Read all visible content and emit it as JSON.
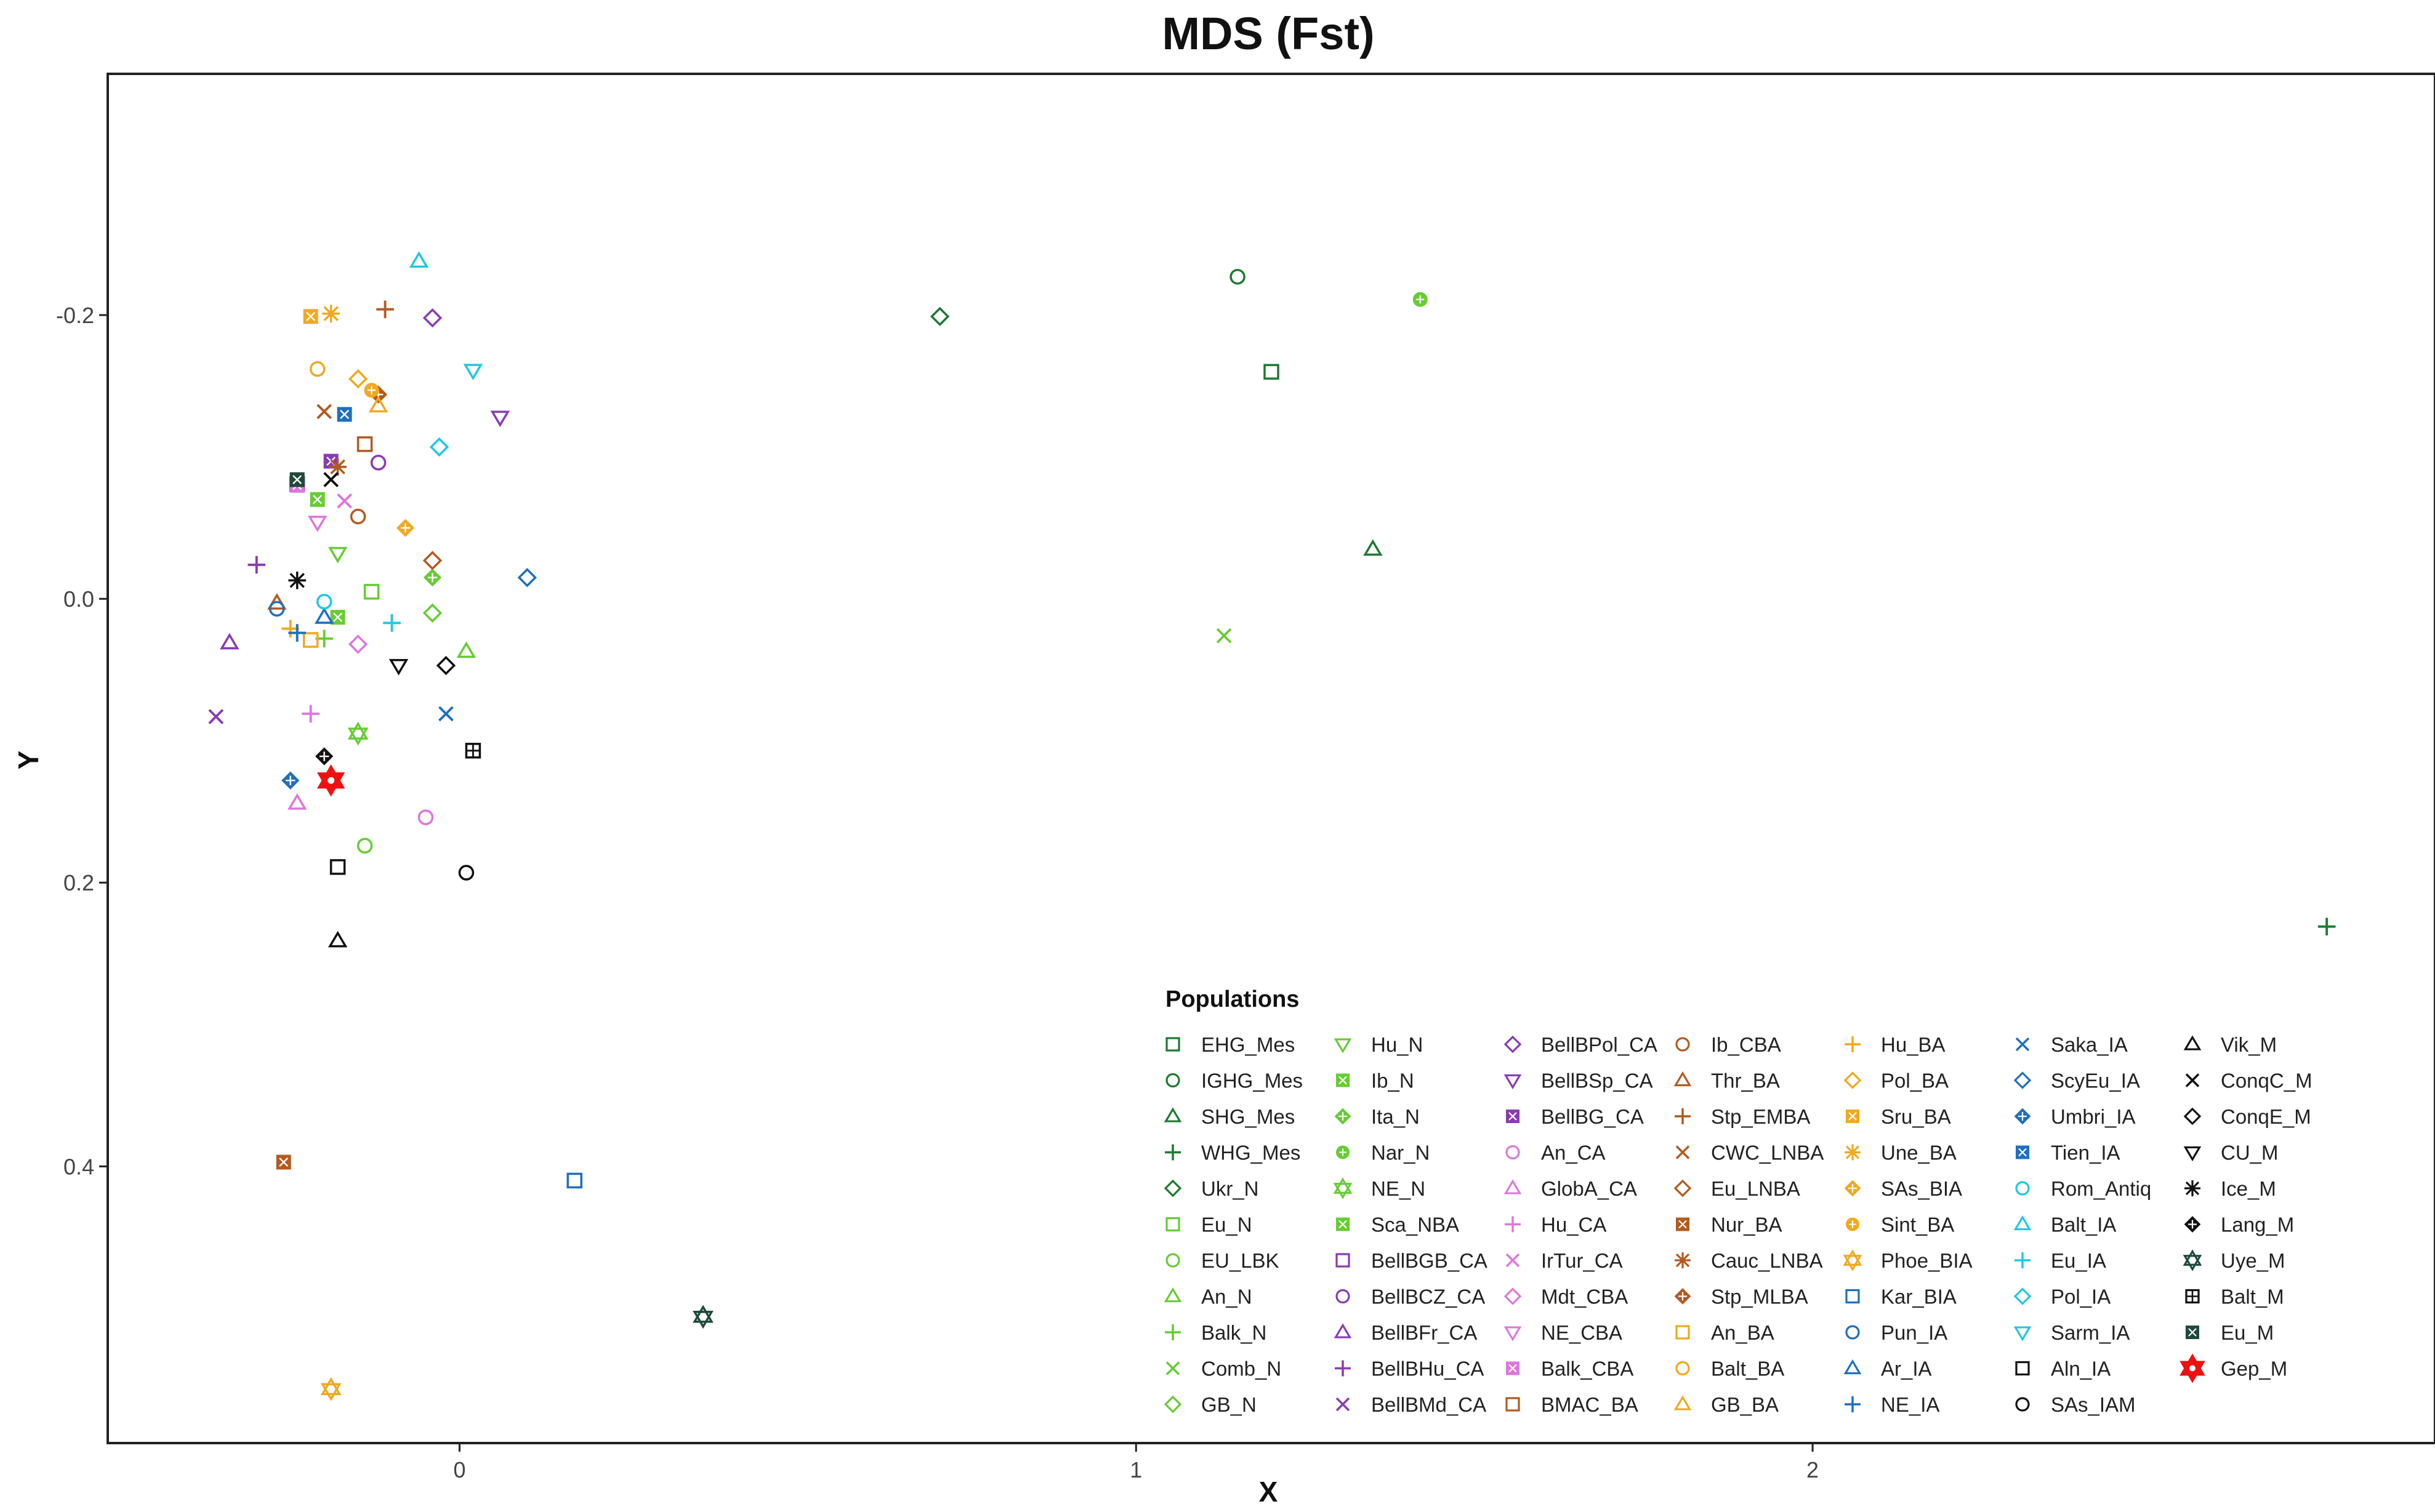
{
  "chart_data": {
    "type": "scatter",
    "title": "MDS (Fst)",
    "xlabel": "X",
    "ylabel": "Y",
    "xlim": [
      -0.52,
      2.92
    ],
    "ylim": [
      -0.37,
      0.595
    ],
    "y_reversed": true,
    "x_ticks": [
      {
        "value": 0,
        "label": "0"
      },
      {
        "value": 1,
        "label": "1"
      },
      {
        "value": 2,
        "label": "2"
      }
    ],
    "y_ticks": [
      {
        "value": -0.2,
        "label": "-0.2"
      },
      {
        "value": 0.0,
        "label": "0.0"
      },
      {
        "value": 0.2,
        "label": "0.2"
      },
      {
        "value": 0.4,
        "label": "0.4"
      }
    ],
    "grid": false,
    "legend_title": "Populations",
    "legend_placement": "bottom-right",
    "series": [
      {
        "name": "EHG_Mes",
        "color": "#1e7a32",
        "shape": "square-open",
        "x": 1.2,
        "y": -0.16
      },
      {
        "name": "IGHG_Mes",
        "color": "#1e7a32",
        "shape": "circle-open",
        "x": 1.15,
        "y": -0.227
      },
      {
        "name": "SHG_Mes",
        "color": "#1e7a32",
        "shape": "triangle-open",
        "x": 1.35,
        "y": -0.035
      },
      {
        "name": "WHG_Mes",
        "color": "#1e7a32",
        "shape": "plus",
        "x": 2.76,
        "y": 0.231
      },
      {
        "name": "Ukr_N",
        "color": "#1e7a32",
        "shape": "diamond-open",
        "x": 0.71,
        "y": -0.199
      },
      {
        "name": "Eu_N",
        "color": "#66cc33",
        "shape": "square-open",
        "x": -0.13,
        "y": -0.005
      },
      {
        "name": "EU_LBK",
        "color": "#66cc33",
        "shape": "circle-open",
        "x": -0.14,
        "y": 0.174
      },
      {
        "name": "An_N",
        "color": "#66cc33",
        "shape": "triangle-open",
        "x": 0.01,
        "y": 0.037
      },
      {
        "name": "Balk_N",
        "color": "#66cc33",
        "shape": "plus",
        "x": -0.2,
        "y": 0.028
      },
      {
        "name": "Comb_N",
        "color": "#66cc33",
        "shape": "x",
        "x": 1.13,
        "y": 0.026
      },
      {
        "name": "GB_N",
        "color": "#66cc33",
        "shape": "diamond-open",
        "x": -0.04,
        "y": 0.01
      },
      {
        "name": "Hu_N",
        "color": "#66cc33",
        "shape": "triangle-down-open",
        "x": -0.18,
        "y": -0.032
      },
      {
        "name": "Ib_N",
        "color": "#66cc33",
        "shape": "square-x",
        "x": -0.21,
        "y": -0.07
      },
      {
        "name": "Ita_N",
        "color": "#66cc33",
        "shape": "diamond-plus",
        "x": -0.04,
        "y": -0.015
      },
      {
        "name": "Nar_N",
        "color": "#66cc33",
        "shape": "circle-plus",
        "x": 1.42,
        "y": -0.211
      },
      {
        "name": "NE_N",
        "color": "#66cc33",
        "shape": "star6",
        "x": -0.15,
        "y": 0.095
      },
      {
        "name": "Sca_NBA",
        "color": "#66cc33",
        "shape": "square-x",
        "x": -0.18,
        "y": 0.013
      },
      {
        "name": "BellBGB_CA",
        "color": "#8a3bb3",
        "shape": "square-open",
        "x": -0.24,
        "y": -0.081
      },
      {
        "name": "BellBCZ_CA",
        "color": "#8a3bb3",
        "shape": "circle-open",
        "x": -0.12,
        "y": -0.096
      },
      {
        "name": "BellBFr_CA",
        "color": "#8a3bb3",
        "shape": "triangle-open",
        "x": -0.34,
        "y": 0.031
      },
      {
        "name": "BellBHu_CA",
        "color": "#8a3bb3",
        "shape": "plus",
        "x": -0.3,
        "y": -0.024
      },
      {
        "name": "BellBMd_CA",
        "color": "#8a3bb3",
        "shape": "x",
        "x": -0.36,
        "y": 0.083
      },
      {
        "name": "BellBPol_CA",
        "color": "#8a3bb3",
        "shape": "diamond-open",
        "x": -0.04,
        "y": -0.198
      },
      {
        "name": "BellBSp_CA",
        "color": "#8a3bb3",
        "shape": "triangle-down-open",
        "x": 0.06,
        "y": -0.128
      },
      {
        "name": "BellBG_CA",
        "color": "#8a3bb3",
        "shape": "square-x",
        "x": -0.19,
        "y": -0.097
      },
      {
        "name": "An_CA",
        "color": "#dd77dd",
        "shape": "circle-open",
        "x": -0.05,
        "y": 0.154
      },
      {
        "name": "GlobA_CA",
        "color": "#dd77dd",
        "shape": "triangle-open",
        "x": -0.24,
        "y": 0.144
      },
      {
        "name": "Hu_CA",
        "color": "#dd77dd",
        "shape": "plus",
        "x": -0.22,
        "y": 0.081
      },
      {
        "name": "IrTur_CA",
        "color": "#dd77dd",
        "shape": "x",
        "x": -0.17,
        "y": -0.069
      },
      {
        "name": "Mdt_CBA",
        "color": "#dd77dd",
        "shape": "diamond-open",
        "x": -0.15,
        "y": 0.032
      },
      {
        "name": "NE_CBA",
        "color": "#dd77dd",
        "shape": "triangle-down-open",
        "x": -0.21,
        "y": -0.054
      },
      {
        "name": "Balk_CBA",
        "color": "#dd77dd",
        "shape": "square-x",
        "x": -0.24,
        "y": -0.08
      },
      {
        "name": "BMAC_BA",
        "color": "#b35a20",
        "shape": "square-open",
        "x": -0.14,
        "y": -0.109
      },
      {
        "name": "Ib_CBA",
        "color": "#b35a20",
        "shape": "circle-open",
        "x": -0.15,
        "y": -0.058
      },
      {
        "name": "Thr_BA",
        "color": "#b35a20",
        "shape": "triangle-open",
        "x": -0.27,
        "y": 0.003
      },
      {
        "name": "Stp_EMBA",
        "color": "#b35a20",
        "shape": "plus",
        "x": -0.11,
        "y": -0.204
      },
      {
        "name": "CWC_LNBA",
        "color": "#b35a20",
        "shape": "x",
        "x": -0.2,
        "y": -0.132
      },
      {
        "name": "Eu_LNBA",
        "color": "#b35a20",
        "shape": "diamond-open",
        "x": -0.04,
        "y": -0.027
      },
      {
        "name": "Nur_BA",
        "color": "#b35a20",
        "shape": "square-x",
        "x": -0.26,
        "y": 0.397
      },
      {
        "name": "Cauc_LNBA",
        "color": "#b35a20",
        "shape": "asterisk",
        "x": -0.18,
        "y": -0.093
      },
      {
        "name": "Stp_MLBA",
        "color": "#b35a20",
        "shape": "diamond-plus",
        "x": -0.12,
        "y": -0.144
      },
      {
        "name": "An_BA",
        "color": "#f0a91e",
        "shape": "square-open",
        "x": -0.22,
        "y": 0.029
      },
      {
        "name": "Balt_BA",
        "color": "#f0a91e",
        "shape": "circle-open",
        "x": -0.21,
        "y": -0.162
      },
      {
        "name": "GB_BA",
        "color": "#f0a91e",
        "shape": "triangle-open",
        "x": -0.12,
        "y": -0.136
      },
      {
        "name": "Hu_BA",
        "color": "#f0a91e",
        "shape": "plus",
        "x": -0.25,
        "y": 0.021
      },
      {
        "name": "Pol_BA",
        "color": "#f0a91e",
        "shape": "diamond-open",
        "x": -0.15,
        "y": -0.155
      },
      {
        "name": "Sru_BA",
        "color": "#f0a91e",
        "shape": "square-x",
        "x": -0.22,
        "y": -0.199
      },
      {
        "name": "Une_BA",
        "color": "#f0a91e",
        "shape": "asterisk",
        "x": -0.19,
        "y": -0.201
      },
      {
        "name": "SAs_BIA",
        "color": "#f0a91e",
        "shape": "diamond-plus",
        "x": -0.08,
        "y": -0.05
      },
      {
        "name": "Sint_BA",
        "color": "#f0a91e",
        "shape": "circle-plus",
        "x": -0.13,
        "y": -0.147
      },
      {
        "name": "Phoe_BIA",
        "color": "#f0a91e",
        "shape": "star6",
        "x": -0.19,
        "y": 0.557
      },
      {
        "name": "Kar_BIA",
        "color": "#1f6fbf",
        "shape": "square-open",
        "x": 0.17,
        "y": 0.41
      },
      {
        "name": "Pun_IA",
        "color": "#1f6fbf",
        "shape": "circle-open",
        "x": -0.27,
        "y": 0.007
      },
      {
        "name": "Ar_IA",
        "color": "#1f6fbf",
        "shape": "triangle-open",
        "x": -0.2,
        "y": 0.013
      },
      {
        "name": "NE_IA",
        "color": "#1f6fbf",
        "shape": "plus",
        "x": -0.24,
        "y": 0.024
      },
      {
        "name": "Saka_IA",
        "color": "#1f6fbf",
        "shape": "x",
        "x": -0.02,
        "y": 0.081
      },
      {
        "name": "ScyEu_IA",
        "color": "#1f6fbf",
        "shape": "diamond-open",
        "x": 0.1,
        "y": -0.015
      },
      {
        "name": "Umbri_IA",
        "color": "#1f6fbf",
        "shape": "diamond-plus",
        "x": -0.25,
        "y": 0.128
      },
      {
        "name": "Tien_IA",
        "color": "#1f6fbf",
        "shape": "square-x",
        "x": -0.17,
        "y": -0.13
      },
      {
        "name": "Rom_Antiq",
        "color": "#1ec8e0",
        "shape": "circle-open",
        "x": -0.2,
        "y": 0.002
      },
      {
        "name": "Balt_IA",
        "color": "#1ec8e0",
        "shape": "triangle-open",
        "x": -0.06,
        "y": -0.238
      },
      {
        "name": "Eu_IA",
        "color": "#1ec8e0",
        "shape": "plus",
        "x": -0.1,
        "y": 0.017
      },
      {
        "name": "Pol_IA",
        "color": "#1ec8e0",
        "shape": "diamond-open",
        "x": -0.03,
        "y": -0.107
      },
      {
        "name": "Sarm_IA",
        "color": "#1ec8e0",
        "shape": "triangle-down-open",
        "x": 0.02,
        "y": -0.161
      },
      {
        "name": "Aln_IA",
        "color": "#111111",
        "shape": "square-open",
        "x": -0.18,
        "y": 0.189
      },
      {
        "name": "SAs_IAM",
        "color": "#111111",
        "shape": "circle-open",
        "x": 0.01,
        "y": 0.193
      },
      {
        "name": "Vik_M",
        "color": "#111111",
        "shape": "triangle-open",
        "x": -0.18,
        "y": 0.241
      },
      {
        "name": "ConqC_M",
        "color": "#111111",
        "shape": "x",
        "x": -0.19,
        "y": -0.084
      },
      {
        "name": "ConqE_M",
        "color": "#111111",
        "shape": "diamond-open",
        "x": -0.02,
        "y": 0.047
      },
      {
        "name": "CU_M",
        "color": "#111111",
        "shape": "triangle-down-open",
        "x": -0.09,
        "y": 0.047
      },
      {
        "name": "Ice_M",
        "color": "#111111",
        "shape": "asterisk",
        "x": -0.24,
        "y": -0.013
      },
      {
        "name": "Lang_M",
        "color": "#111111",
        "shape": "diamond-plus",
        "x": -0.2,
        "y": 0.111
      },
      {
        "name": "Uye_M",
        "color": "#1e4a3a",
        "shape": "star6",
        "x": 0.36,
        "y": 0.506
      },
      {
        "name": "Balt_M",
        "color": "#111111",
        "shape": "square-plus",
        "x": 0.02,
        "y": 0.107
      },
      {
        "name": "Eu_M",
        "color": "#1e4a3a",
        "shape": "square-x",
        "x": -0.24,
        "y": -0.084
      },
      {
        "name": "Gep_M",
        "color": "#ee1111",
        "shape": "star6-big",
        "x": -0.19,
        "y": 0.128
      }
    ]
  }
}
